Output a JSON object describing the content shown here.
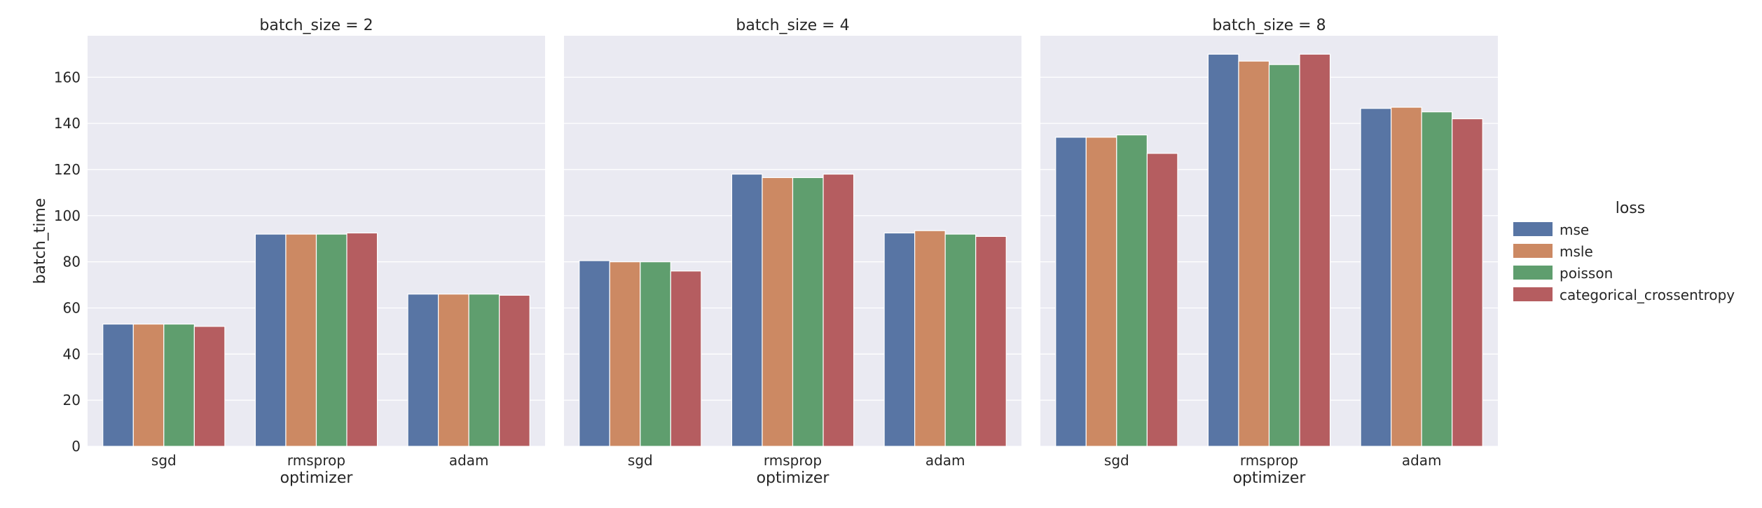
{
  "chart_data": {
    "type": "bar",
    "ylabel": "batch_time",
    "ylim": [
      0,
      178
    ],
    "yticks": [
      0,
      20,
      40,
      60,
      80,
      100,
      120,
      140,
      160
    ],
    "grid": true,
    "legend": {
      "title": "loss",
      "placement": "right"
    },
    "series_colors": [
      "#5875a4",
      "#cc8963",
      "#5f9e6e",
      "#b55d60"
    ],
    "panels": [
      {
        "title": "batch_size = 2",
        "xlabel": "optimizer",
        "categories": [
          "sgd",
          "rmsprop",
          "adam"
        ],
        "series": [
          {
            "name": "mse",
            "values": [
              53,
              92,
              66
            ]
          },
          {
            "name": "msle",
            "values": [
              53,
              92,
              66
            ]
          },
          {
            "name": "poisson",
            "values": [
              53,
              92,
              66
            ]
          },
          {
            "name": "categorical_crossentropy",
            "values": [
              52,
              92.5,
              65.5
            ]
          }
        ]
      },
      {
        "title": "batch_size = 4",
        "xlabel": "optimizer",
        "categories": [
          "sgd",
          "rmsprop",
          "adam"
        ],
        "series": [
          {
            "name": "mse",
            "values": [
              80.5,
              118,
              92.5
            ]
          },
          {
            "name": "msle",
            "values": [
              80,
              116.5,
              93.5
            ]
          },
          {
            "name": "poisson",
            "values": [
              80,
              116.5,
              92
            ]
          },
          {
            "name": "categorical_crossentropy",
            "values": [
              76,
              118,
              91
            ]
          }
        ]
      },
      {
        "title": "batch_size = 8",
        "xlabel": "optimizer",
        "categories": [
          "sgd",
          "rmsprop",
          "adam"
        ],
        "series": [
          {
            "name": "mse",
            "values": [
              134,
              170,
              146.5
            ]
          },
          {
            "name": "msle",
            "values": [
              134,
              167,
              147
            ]
          },
          {
            "name": "poisson",
            "values": [
              135,
              165.5,
              145
            ]
          },
          {
            "name": "categorical_crossentropy",
            "values": [
              127,
              170,
              142
            ]
          }
        ]
      }
    ]
  }
}
